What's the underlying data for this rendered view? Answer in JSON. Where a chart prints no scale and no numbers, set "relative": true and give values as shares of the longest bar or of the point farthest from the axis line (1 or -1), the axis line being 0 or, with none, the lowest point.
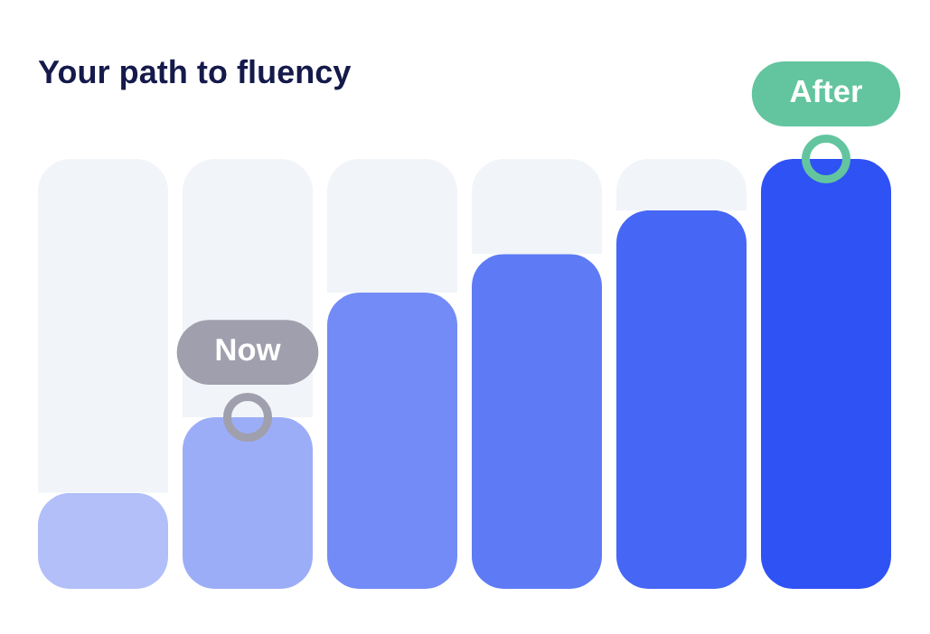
{
  "chart_data": {
    "type": "bar",
    "title": "Your path to fluency",
    "categories": [
      null,
      null,
      null,
      null,
      null,
      null
    ],
    "relative": true,
    "stacked": true,
    "series": [
      {
        "colors": [
          "#b2bff9",
          "#9cadf8",
          "#738bf6",
          "#5e7bf5",
          "#4666f5",
          "#2f52f4"
        ],
        "values": [
          0.223,
          0.399,
          0.689,
          0.779,
          0.88,
          1.0
        ]
      },
      {
        "color": "#f1f4f9",
        "values": [
          0.777,
          0.601,
          0.311,
          0.221,
          0.12,
          0.0
        ]
      }
    ],
    "annotations": [
      {
        "text": "Now",
        "y": 0.399
      },
      {
        "text": "After",
        "y": 1.0
      }
    ]
  }
}
